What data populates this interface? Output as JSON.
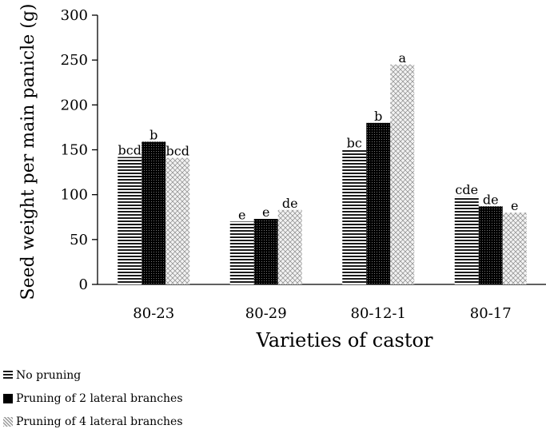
{
  "chart_data": {
    "type": "bar",
    "xlabel": "Varieties of castor",
    "ylabel": "Seed weight per main panicle (g)",
    "ylim": [
      0,
      300
    ],
    "yticks": [
      0,
      50,
      100,
      150,
      200,
      250,
      300
    ],
    "categories": [
      "80-23",
      "80-29",
      "80-12-1",
      "80-17"
    ],
    "legend_position": "bottom-left",
    "series": [
      {
        "name": "No pruning",
        "values": [
          142,
          70,
          150,
          98
        ],
        "letters": [
          "bcd",
          "e",
          "bc",
          "cde"
        ],
        "pattern": "horizontal-lines"
      },
      {
        "name": "Pruning of 2 lateral branches",
        "values": [
          159,
          73,
          180,
          87
        ],
        "letters": [
          "b",
          "e",
          "b",
          "de"
        ],
        "pattern": "dense-grid"
      },
      {
        "name": "Pruning of 4 lateral branches",
        "values": [
          141,
          83,
          245,
          80
        ],
        "letters": [
          "bcd",
          "de",
          "a",
          "e"
        ],
        "pattern": "diagonal-crosshatch"
      }
    ]
  }
}
